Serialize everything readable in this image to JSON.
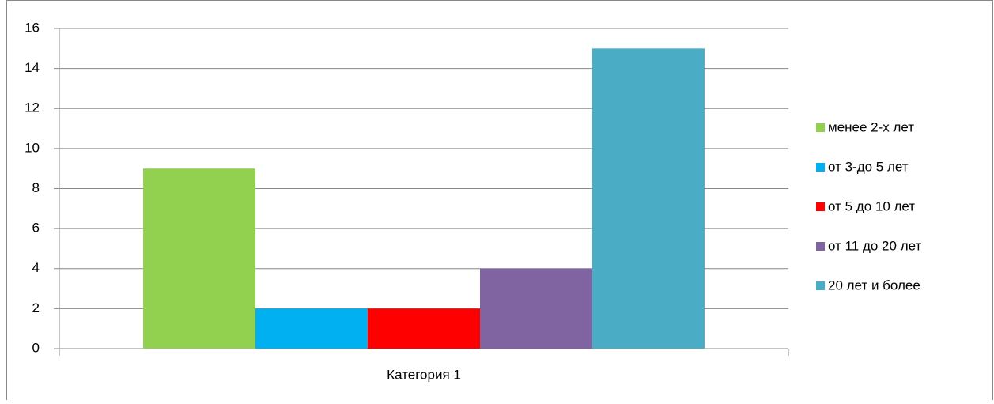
{
  "chart_data": {
    "type": "bar",
    "categories": [
      "Категория 1"
    ],
    "series": [
      {
        "name": "менее 2-х лет",
        "color": "#92d050",
        "values": [
          9
        ]
      },
      {
        "name": "от 3-до 5 лет",
        "color": "#00b0f0",
        "values": [
          2
        ]
      },
      {
        "name": "от 5 до 10 лет",
        "color": "#ff0000",
        "values": [
          2
        ]
      },
      {
        "name": "от 11 до 20 лет",
        "color": "#8064a2",
        "values": [
          4
        ]
      },
      {
        "name": "20 лет и более",
        "color": "#4bacc6",
        "values": [
          15
        ]
      }
    ],
    "ylim": [
      0,
      16
    ],
    "yticks": [
      0,
      2,
      4,
      6,
      8,
      10,
      12,
      14,
      16
    ],
    "grid": true,
    "legend": "right"
  }
}
